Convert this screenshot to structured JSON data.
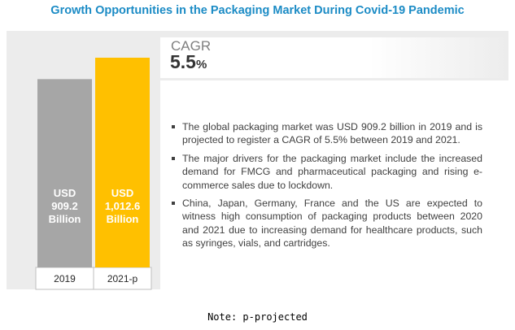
{
  "title": "Growth Opportunities in the Packaging Market During Covid-19 Pandemic",
  "cagr": {
    "label": "CAGR",
    "value": "5.5",
    "unit": "%"
  },
  "bullets": [
    "The global packaging market was USD 909.2 billion in 2019 and is projected to register a CAGR of 5.5% between 2019 and 2021.",
    "The major drivers for the packaging market include the increased demand for FMCG and pharmaceutical packaging and rising e-commerce sales due to lockdown.",
    "China, Japan, Germany, France and the US are expected to witness high consumption of packaging products between 2020 and 2021 due to increasing demand for healthcare products, such as syringes, vials, and cartridges."
  ],
  "note": "Note: p-projected",
  "colors": {
    "title": "#1b8bc5",
    "bar_2019": "#a6a6a6",
    "bar_2021": "#ffc000"
  },
  "chart_data": {
    "type": "bar",
    "categories": [
      "2019",
      "2021-p"
    ],
    "values": [
      909.2,
      1012.6
    ],
    "value_labels": [
      [
        "USD",
        "909.2",
        "Billion"
      ],
      [
        "USD",
        "1,012.6",
        "Billion"
      ]
    ],
    "unit": "USD Billion",
    "title": "",
    "xlabel": "",
    "ylabel": "",
    "grid": false,
    "legend": "none"
  }
}
